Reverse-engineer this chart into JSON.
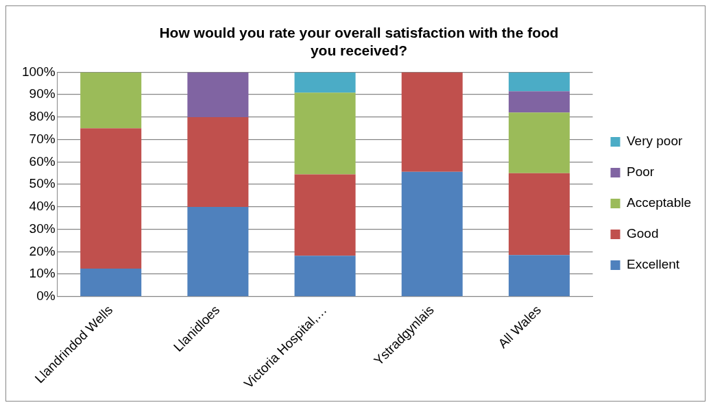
{
  "chart_data": {
    "type": "bar",
    "title": "How would you rate your overall satisfaction with the food you received?",
    "categories": [
      "Llandrindod Wells",
      "Llanidloes",
      "Victoria Hospital,…",
      "Ystradgynlais",
      "All Wales"
    ],
    "stacked": true,
    "series": [
      {
        "name": "Excellent",
        "color": "#4f81bd",
        "values": [
          12.5,
          40,
          18.2,
          55.6,
          18.5
        ]
      },
      {
        "name": "Good",
        "color": "#c0504d",
        "values": [
          62.5,
          40,
          36.3,
          44.4,
          36.5
        ]
      },
      {
        "name": "Acceptable",
        "color": "#9bbb59",
        "values": [
          25,
          0,
          36.4,
          0,
          27
        ]
      },
      {
        "name": "Poor",
        "color": "#8064a2",
        "values": [
          0,
          20,
          0,
          0,
          9.5
        ]
      },
      {
        "name": "Very poor",
        "color": "#4bacc6",
        "values": [
          0,
          0,
          9.1,
          0,
          8.5
        ]
      }
    ],
    "ylim": [
      0,
      100
    ],
    "yticks": [
      {
        "value": 0,
        "label": "0%"
      },
      {
        "value": 10,
        "label": "10%"
      },
      {
        "value": 20,
        "label": "20%"
      },
      {
        "value": 30,
        "label": "30%"
      },
      {
        "value": 40,
        "label": "40%"
      },
      {
        "value": 50,
        "label": "50%"
      },
      {
        "value": 60,
        "label": "60%"
      },
      {
        "value": 70,
        "label": "70%"
      },
      {
        "value": 80,
        "label": "80%"
      },
      {
        "value": 90,
        "label": "90%"
      },
      {
        "value": 100,
        "label": "100%"
      }
    ],
    "grid": "y",
    "legend": "right"
  }
}
